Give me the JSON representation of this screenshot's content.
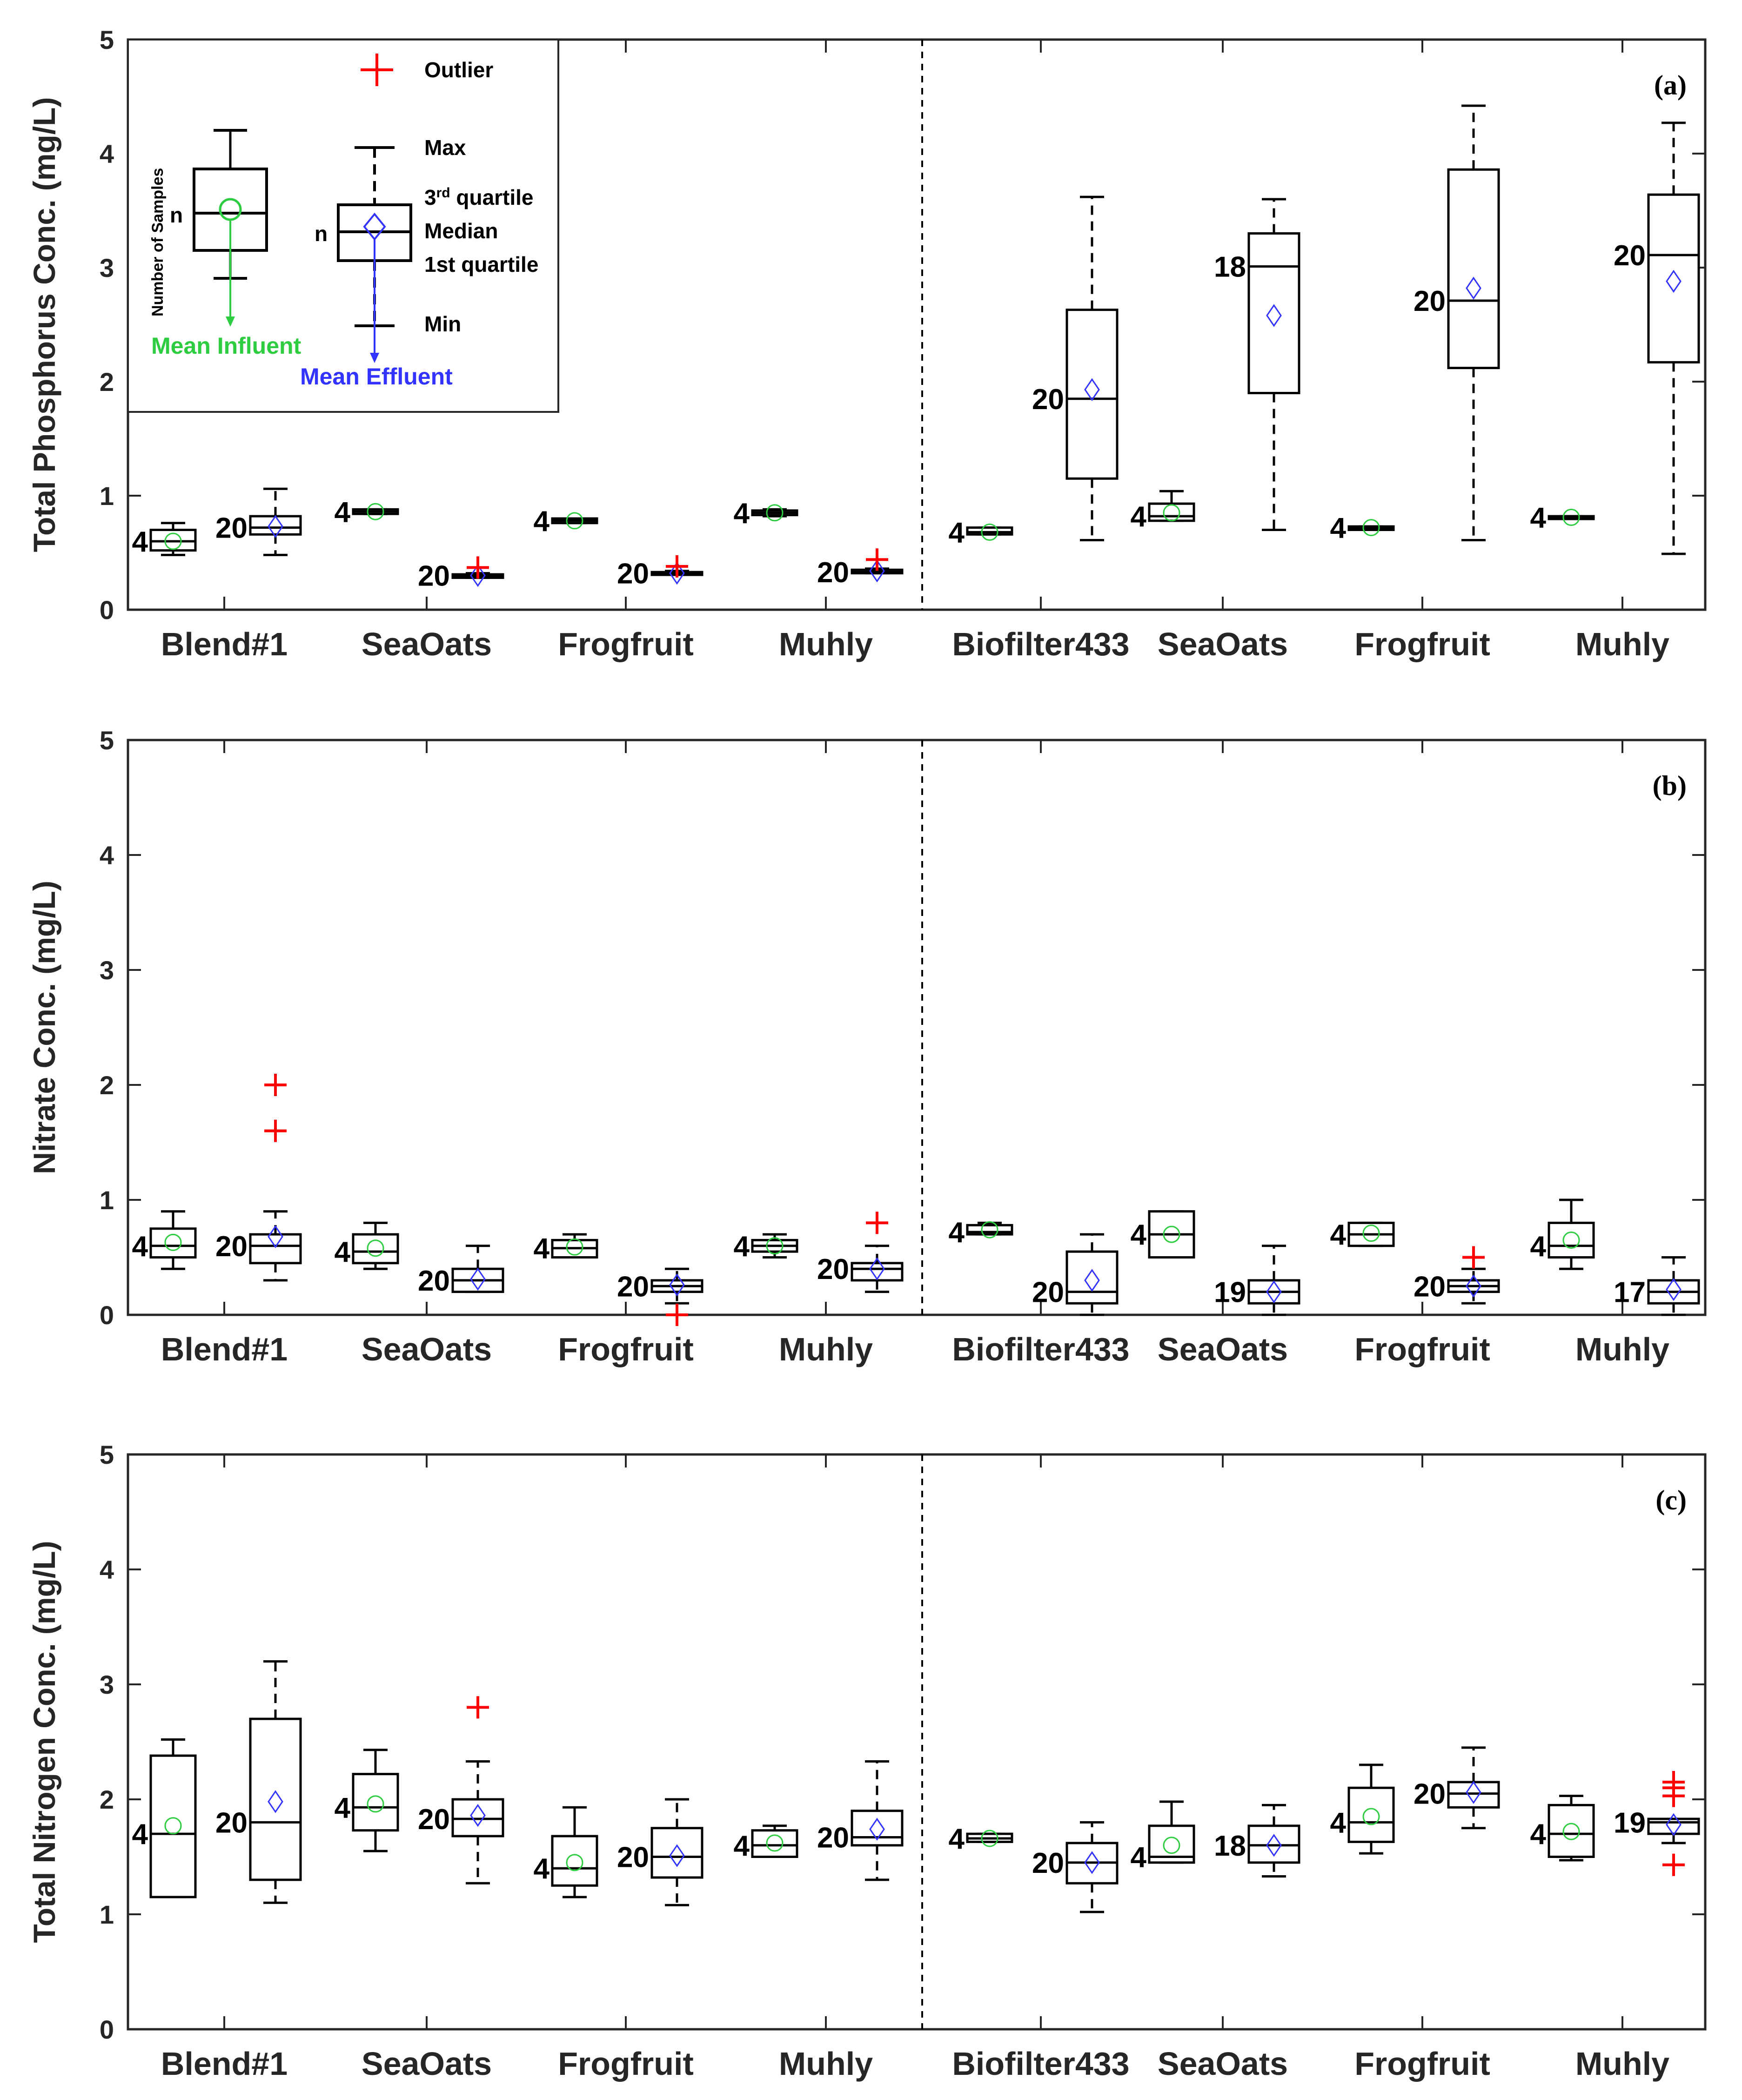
{
  "figure": {
    "legend": {
      "outlier_label": "Outlier",
      "max_label": "Max",
      "q3_label_base": "3",
      "q3_label_sup": "rd",
      "q3_label_rest": " quartile",
      "median_label": "Median",
      "q1_label": "1st quartile",
      "min_label": "Min",
      "n_label": "n",
      "samples_label": "Number of Samples",
      "mean_influent_label": "Mean Influent",
      "mean_effluent_label": "Mean Effluent"
    },
    "colors": {
      "influent": "#2ecc40",
      "effluent": "#3333ff",
      "outlier": "#ff0000",
      "box": "#000000"
    }
  },
  "chart_data": [
    {
      "type": "box",
      "panel_tag": "(a)",
      "ylabel": "Total Phosphorus Conc. (mg/L)",
      "ylim": [
        0,
        5
      ],
      "yticks": [
        "0",
        "1",
        "2",
        "3",
        "4",
        "5"
      ],
      "categories": [
        "Blend#1",
        "SeaOats",
        "Frogfruit",
        "Muhly",
        "Biofilter433",
        "SeaOats",
        "Frogfruit",
        "Muhly"
      ],
      "series": [
        {
          "group": 0,
          "kind": "influent",
          "n": "4",
          "min": 0.48,
          "q1": 0.52,
          "median": 0.6,
          "q3": 0.7,
          "max": 0.76,
          "mean": 0.6,
          "outliers": []
        },
        {
          "group": 0,
          "kind": "effluent",
          "n": "20",
          "min": 0.48,
          "q1": 0.66,
          "median": 0.72,
          "q3": 0.82,
          "max": 1.06,
          "mean": 0.73,
          "outliers": []
        },
        {
          "group": 1,
          "kind": "influent",
          "n": "4",
          "min": 0.84,
          "q1": 0.84,
          "median": 0.86,
          "q3": 0.88,
          "max": 0.88,
          "mean": 0.86,
          "outliers": []
        },
        {
          "group": 1,
          "kind": "effluent",
          "n": "20",
          "min": 0.28,
          "q1": 0.28,
          "median": 0.3,
          "q3": 0.31,
          "max": 0.32,
          "mean": 0.3,
          "outliers": [
            0.37
          ]
        },
        {
          "group": 2,
          "kind": "influent",
          "n": "4",
          "min": 0.76,
          "q1": 0.76,
          "median": 0.78,
          "q3": 0.8,
          "max": 0.8,
          "mean": 0.78,
          "outliers": []
        },
        {
          "group": 2,
          "kind": "effluent",
          "n": "20",
          "min": 0.31,
          "q1": 0.31,
          "median": 0.32,
          "q3": 0.33,
          "max": 0.34,
          "mean": 0.32,
          "outliers": [
            0.38
          ]
        },
        {
          "group": 3,
          "kind": "influent",
          "n": "4",
          "min": 0.82,
          "q1": 0.83,
          "median": 0.85,
          "q3": 0.87,
          "max": 0.88,
          "mean": 0.85,
          "outliers": []
        },
        {
          "group": 3,
          "kind": "effluent",
          "n": "20",
          "min": 0.32,
          "q1": 0.32,
          "median": 0.33,
          "q3": 0.35,
          "max": 0.36,
          "mean": 0.34,
          "outliers": [
            0.44
          ]
        },
        {
          "group": 4,
          "kind": "influent",
          "n": "4",
          "min": 0.66,
          "q1": 0.66,
          "median": 0.68,
          "q3": 0.72,
          "max": 0.72,
          "mean": 0.68,
          "outliers": []
        },
        {
          "group": 4,
          "kind": "effluent",
          "n": "20",
          "min": 0.61,
          "q1": 1.15,
          "median": 1.85,
          "q3": 2.63,
          "max": 3.62,
          "mean": 1.93,
          "outliers": []
        },
        {
          "group": 5,
          "kind": "influent",
          "n": "4",
          "min": 0.78,
          "q1": 0.78,
          "median": 0.82,
          "q3": 0.93,
          "max": 1.04,
          "mean": 0.85,
          "outliers": []
        },
        {
          "group": 5,
          "kind": "effluent",
          "n": "18",
          "min": 0.7,
          "q1": 1.9,
          "median": 3.01,
          "q3": 3.3,
          "max": 3.6,
          "mean": 2.58,
          "outliers": []
        },
        {
          "group": 6,
          "kind": "influent",
          "n": "4",
          "min": 0.7,
          "q1": 0.7,
          "median": 0.72,
          "q3": 0.73,
          "max": 0.73,
          "mean": 0.72,
          "outliers": []
        },
        {
          "group": 6,
          "kind": "effluent",
          "n": "20",
          "min": 0.61,
          "q1": 2.12,
          "median": 2.71,
          "q3": 3.86,
          "max": 4.42,
          "mean": 2.82,
          "outliers": []
        },
        {
          "group": 7,
          "kind": "influent",
          "n": "4",
          "min": 0.8,
          "q1": 0.8,
          "median": 0.81,
          "q3": 0.82,
          "max": 0.82,
          "mean": 0.81,
          "outliers": []
        },
        {
          "group": 7,
          "kind": "effluent",
          "n": "20",
          "min": 0.49,
          "q1": 2.17,
          "median": 3.11,
          "q3": 3.64,
          "max": 4.27,
          "mean": 2.88,
          "outliers": []
        }
      ]
    },
    {
      "type": "box",
      "panel_tag": "(b)",
      "ylabel": "Nitrate Conc. (mg/L)",
      "ylim": [
        0,
        5
      ],
      "yticks": [
        "0",
        "1",
        "2",
        "3",
        "4",
        "5"
      ],
      "categories": [
        "Blend#1",
        "SeaOats",
        "Frogfruit",
        "Muhly",
        "Biofilter433",
        "SeaOats",
        "Frogfruit",
        "Muhly"
      ],
      "series": [
        {
          "group": 0,
          "kind": "influent",
          "n": "4",
          "min": 0.4,
          "q1": 0.5,
          "median": 0.6,
          "q3": 0.75,
          "max": 0.9,
          "mean": 0.63,
          "outliers": []
        },
        {
          "group": 0,
          "kind": "effluent",
          "n": "20",
          "min": 0.3,
          "q1": 0.45,
          "median": 0.6,
          "q3": 0.7,
          "max": 0.9,
          "mean": 0.68,
          "outliers": [
            1.6,
            2.0
          ]
        },
        {
          "group": 1,
          "kind": "influent",
          "n": "4",
          "min": 0.4,
          "q1": 0.45,
          "median": 0.55,
          "q3": 0.7,
          "max": 0.8,
          "mean": 0.58,
          "outliers": []
        },
        {
          "group": 1,
          "kind": "effluent",
          "n": "20",
          "min": 0.2,
          "q1": 0.2,
          "median": 0.3,
          "q3": 0.4,
          "max": 0.6,
          "mean": 0.31,
          "outliers": []
        },
        {
          "group": 2,
          "kind": "influent",
          "n": "4",
          "min": 0.5,
          "q1": 0.5,
          "median": 0.58,
          "q3": 0.65,
          "max": 0.7,
          "mean": 0.59,
          "outliers": []
        },
        {
          "group": 2,
          "kind": "effluent",
          "n": "20",
          "min": 0.1,
          "q1": 0.2,
          "median": 0.25,
          "q3": 0.3,
          "max": 0.4,
          "mean": 0.26,
          "outliers": [
            0.0
          ]
        },
        {
          "group": 3,
          "kind": "influent",
          "n": "4",
          "min": 0.5,
          "q1": 0.55,
          "median": 0.6,
          "q3": 0.65,
          "max": 0.7,
          "mean": 0.6,
          "outliers": []
        },
        {
          "group": 3,
          "kind": "effluent",
          "n": "20",
          "min": 0.2,
          "q1": 0.3,
          "median": 0.4,
          "q3": 0.45,
          "max": 0.6,
          "mean": 0.4,
          "outliers": [
            0.8
          ]
        },
        {
          "group": 4,
          "kind": "influent",
          "n": "4",
          "min": 0.7,
          "q1": 0.7,
          "median": 0.72,
          "q3": 0.78,
          "max": 0.8,
          "mean": 0.74,
          "outliers": []
        },
        {
          "group": 4,
          "kind": "effluent",
          "n": "20",
          "min": 0.0,
          "q1": 0.1,
          "median": 0.2,
          "q3": 0.55,
          "max": 0.7,
          "mean": 0.3,
          "outliers": []
        },
        {
          "group": 5,
          "kind": "influent",
          "n": "4",
          "min": 0.5,
          "q1": 0.5,
          "median": 0.7,
          "q3": 0.9,
          "max": 0.9,
          "mean": 0.7,
          "outliers": []
        },
        {
          "group": 5,
          "kind": "effluent",
          "n": "19",
          "min": 0.0,
          "q1": 0.1,
          "median": 0.2,
          "q3": 0.3,
          "max": 0.6,
          "mean": 0.2,
          "outliers": []
        },
        {
          "group": 6,
          "kind": "influent",
          "n": "4",
          "min": 0.6,
          "q1": 0.6,
          "median": 0.7,
          "q3": 0.8,
          "max": 0.8,
          "mean": 0.71,
          "outliers": []
        },
        {
          "group": 6,
          "kind": "effluent",
          "n": "20",
          "min": 0.1,
          "q1": 0.2,
          "median": 0.25,
          "q3": 0.3,
          "max": 0.4,
          "mean": 0.25,
          "outliers": [
            0.5
          ]
        },
        {
          "group": 7,
          "kind": "influent",
          "n": "4",
          "min": 0.4,
          "q1": 0.5,
          "median": 0.6,
          "q3": 0.8,
          "max": 1.0,
          "mean": 0.65,
          "outliers": []
        },
        {
          "group": 7,
          "kind": "effluent",
          "n": "17",
          "min": 0.0,
          "q1": 0.1,
          "median": 0.2,
          "q3": 0.3,
          "max": 0.5,
          "mean": 0.22,
          "outliers": []
        }
      ]
    },
    {
      "type": "box",
      "panel_tag": "(c)",
      "ylabel": "Total Nitrogen Conc. (mg/L)",
      "ylim": [
        0,
        5
      ],
      "yticks": [
        "0",
        "1",
        "2",
        "3",
        "4",
        "5"
      ],
      "categories": [
        "Blend#1",
        "SeaOats",
        "Frogfruit",
        "Muhly",
        "Biofilter433",
        "SeaOats",
        "Frogfruit",
        "Muhly"
      ],
      "series": [
        {
          "group": 0,
          "kind": "influent",
          "n": "4",
          "min": 1.15,
          "q1": 1.15,
          "median": 1.7,
          "q3": 2.38,
          "max": 2.52,
          "mean": 1.77,
          "outliers": []
        },
        {
          "group": 0,
          "kind": "effluent",
          "n": "20",
          "min": 1.1,
          "q1": 1.3,
          "median": 1.8,
          "q3": 2.7,
          "max": 3.2,
          "mean": 1.98,
          "outliers": []
        },
        {
          "group": 1,
          "kind": "influent",
          "n": "4",
          "min": 1.55,
          "q1": 1.73,
          "median": 1.93,
          "q3": 2.22,
          "max": 2.43,
          "mean": 1.96,
          "outliers": []
        },
        {
          "group": 1,
          "kind": "effluent",
          "n": "20",
          "min": 1.27,
          "q1": 1.68,
          "median": 1.83,
          "q3": 2.0,
          "max": 2.33,
          "mean": 1.86,
          "outliers": [
            2.8
          ]
        },
        {
          "group": 2,
          "kind": "influent",
          "n": "4",
          "min": 1.15,
          "q1": 1.25,
          "median": 1.4,
          "q3": 1.68,
          "max": 1.93,
          "mean": 1.45,
          "outliers": []
        },
        {
          "group": 2,
          "kind": "effluent",
          "n": "20",
          "min": 1.08,
          "q1": 1.32,
          "median": 1.5,
          "q3": 1.75,
          "max": 2.0,
          "mean": 1.51,
          "outliers": []
        },
        {
          "group": 3,
          "kind": "influent",
          "n": "4",
          "min": 1.5,
          "q1": 1.5,
          "median": 1.6,
          "q3": 1.73,
          "max": 1.77,
          "mean": 1.62,
          "outliers": []
        },
        {
          "group": 3,
          "kind": "effluent",
          "n": "20",
          "min": 1.3,
          "q1": 1.6,
          "median": 1.67,
          "q3": 1.9,
          "max": 2.33,
          "mean": 1.74,
          "outliers": []
        },
        {
          "group": 4,
          "kind": "influent",
          "n": "4",
          "min": 1.63,
          "q1": 1.63,
          "median": 1.66,
          "q3": 1.7,
          "max": 1.7,
          "mean": 1.66,
          "outliers": []
        },
        {
          "group": 4,
          "kind": "effluent",
          "n": "20",
          "min": 1.02,
          "q1": 1.27,
          "median": 1.45,
          "q3": 1.62,
          "max": 1.8,
          "mean": 1.45,
          "outliers": []
        },
        {
          "group": 5,
          "kind": "influent",
          "n": "4",
          "min": 1.45,
          "q1": 1.45,
          "median": 1.5,
          "q3": 1.77,
          "max": 1.98,
          "mean": 1.6,
          "outliers": []
        },
        {
          "group": 5,
          "kind": "effluent",
          "n": "18",
          "min": 1.33,
          "q1": 1.45,
          "median": 1.6,
          "q3": 1.77,
          "max": 1.95,
          "mean": 1.6,
          "outliers": []
        },
        {
          "group": 6,
          "kind": "influent",
          "n": "4",
          "min": 1.53,
          "q1": 1.63,
          "median": 1.8,
          "q3": 2.1,
          "max": 2.3,
          "mean": 1.85,
          "outliers": []
        },
        {
          "group": 6,
          "kind": "effluent",
          "n": "20",
          "min": 1.75,
          "q1": 1.93,
          "median": 2.05,
          "q3": 2.15,
          "max": 2.45,
          "mean": 2.06,
          "outliers": []
        },
        {
          "group": 7,
          "kind": "influent",
          "n": "4",
          "min": 1.47,
          "q1": 1.5,
          "median": 1.7,
          "q3": 1.95,
          "max": 2.03,
          "mean": 1.72,
          "outliers": []
        },
        {
          "group": 7,
          "kind": "effluent",
          "n": "19",
          "min": 1.62,
          "q1": 1.7,
          "median": 1.8,
          "q3": 1.83,
          "max": 1.83,
          "mean": 1.78,
          "outliers": [
            1.43,
            2.03,
            2.1,
            2.15
          ]
        }
      ]
    }
  ]
}
